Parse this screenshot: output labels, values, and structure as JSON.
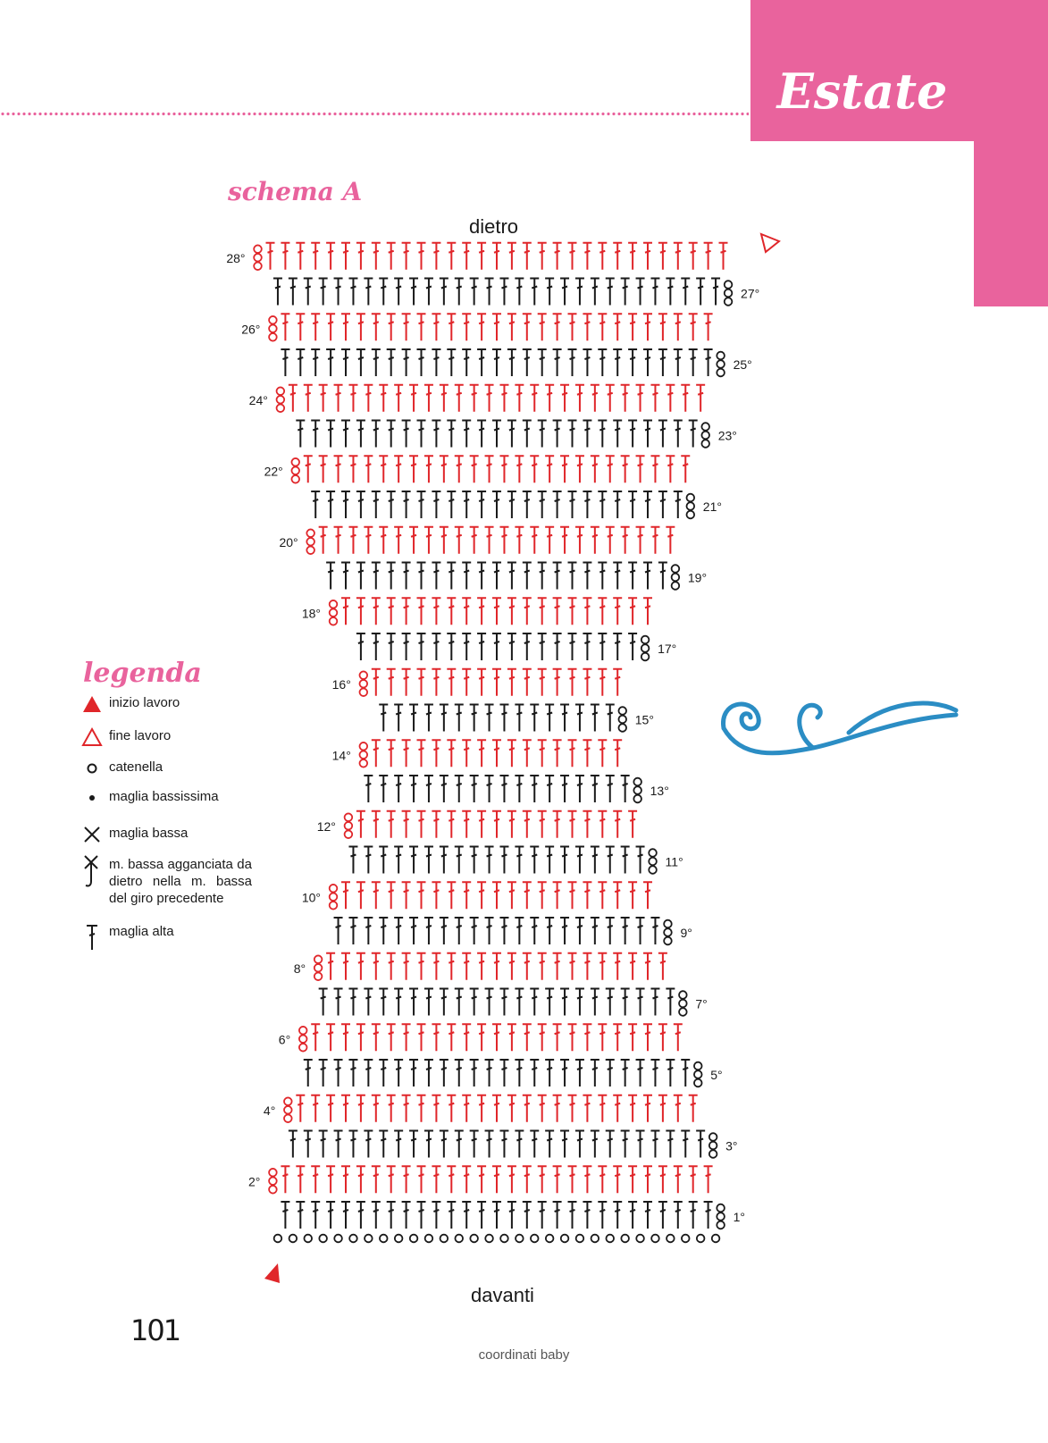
{
  "header": {
    "section_title": "Estate",
    "accent_color": "#e9639d"
  },
  "diagram": {
    "title": "schema A",
    "top_label": "dietro",
    "bottom_label": "davanti",
    "row_colors": {
      "odd": "#1a1a1a",
      "even": "#e0262a"
    },
    "start_chain_count": 30,
    "rows": [
      {
        "label": "1°",
        "stitches": 29,
        "turn_chain_side": "right"
      },
      {
        "label": "2°",
        "stitches": 29,
        "turn_chain_side": "left"
      },
      {
        "label": "3°",
        "stitches": 28,
        "turn_chain_side": "right"
      },
      {
        "label": "4°",
        "stitches": 27,
        "turn_chain_side": "left"
      },
      {
        "label": "5°",
        "stitches": 26,
        "turn_chain_side": "right"
      },
      {
        "label": "6°",
        "stitches": 25,
        "turn_chain_side": "left"
      },
      {
        "label": "7°",
        "stitches": 24,
        "turn_chain_side": "right"
      },
      {
        "label": "8°",
        "stitches": 23,
        "turn_chain_side": "left"
      },
      {
        "label": "9°",
        "stitches": 22,
        "turn_chain_side": "right"
      },
      {
        "label": "10°",
        "stitches": 21,
        "turn_chain_side": "left"
      },
      {
        "label": "11°",
        "stitches": 20,
        "turn_chain_side": "right"
      },
      {
        "label": "12°",
        "stitches": 19,
        "turn_chain_side": "left"
      },
      {
        "label": "13°",
        "stitches": 18,
        "turn_chain_side": "right"
      },
      {
        "label": "14°",
        "stitches": 17,
        "turn_chain_side": "left"
      },
      {
        "label": "15°",
        "stitches": 16,
        "turn_chain_side": "right"
      },
      {
        "label": "16°",
        "stitches": 17,
        "turn_chain_side": "left"
      },
      {
        "label": "17°",
        "stitches": 19,
        "turn_chain_side": "right"
      },
      {
        "label": "18°",
        "stitches": 21,
        "turn_chain_side": "left"
      },
      {
        "label": "19°",
        "stitches": 23,
        "turn_chain_side": "right"
      },
      {
        "label": "20°",
        "stitches": 24,
        "turn_chain_side": "left"
      },
      {
        "label": "21°",
        "stitches": 25,
        "turn_chain_side": "right"
      },
      {
        "label": "22°",
        "stitches": 26,
        "turn_chain_side": "left"
      },
      {
        "label": "23°",
        "stitches": 27,
        "turn_chain_side": "right"
      },
      {
        "label": "24°",
        "stitches": 28,
        "turn_chain_side": "left"
      },
      {
        "label": "25°",
        "stitches": 29,
        "turn_chain_side": "right"
      },
      {
        "label": "26°",
        "stitches": 29,
        "turn_chain_side": "left"
      },
      {
        "label": "27°",
        "stitches": 30,
        "turn_chain_side": "right"
      },
      {
        "label": "28°",
        "stitches": 31,
        "turn_chain_side": "left"
      }
    ]
  },
  "legend": {
    "title": "legenda",
    "items": [
      {
        "icon": "filled-triangle-icon",
        "label": "inizio lavoro"
      },
      {
        "icon": "outline-triangle-icon",
        "label": "fine lavoro"
      },
      {
        "icon": "chain-circle-icon",
        "label": "catenella"
      },
      {
        "icon": "dot-icon",
        "label": "maglia bassissima"
      },
      {
        "icon": "cross-icon",
        "label": "maglia bassa"
      },
      {
        "icon": "hooked-cross-icon",
        "label": "m. bassa agganciata da dietro nella m. bassa del giro precedente"
      },
      {
        "icon": "double-crochet-icon",
        "label": "maglia alta"
      }
    ]
  },
  "footer": {
    "page_number": "101",
    "book_title": "coordinati baby"
  }
}
